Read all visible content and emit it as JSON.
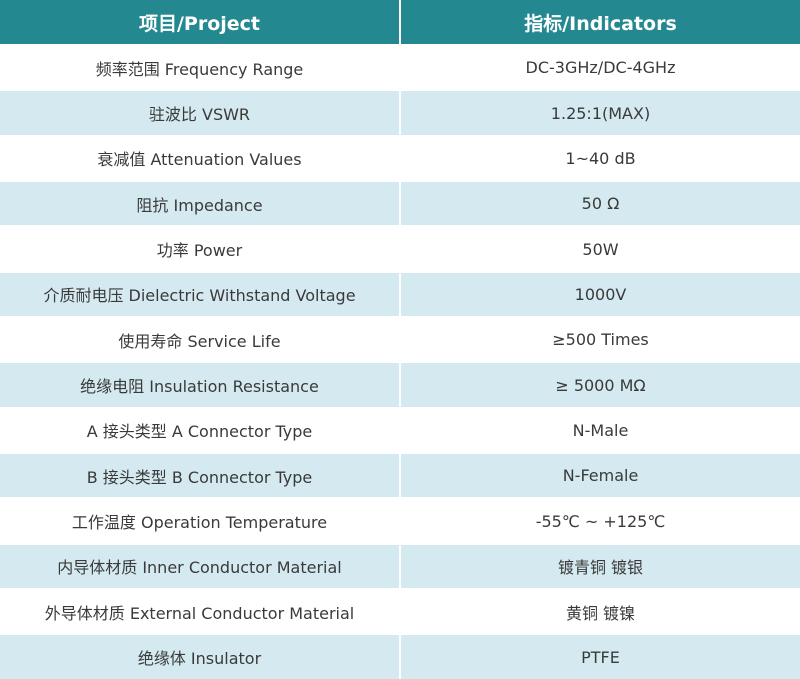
{
  "table": {
    "header": [
      "项目/Project",
      "指标/Indicators"
    ],
    "rows": [
      [
        "频率范围 Frequency Range",
        "DC-3GHz/DC-4GHz"
      ],
      [
        "驻波比 VSWR",
        "1.25:1(MAX)"
      ],
      [
        "衰减值 Attenuation Values",
        "1~40 dB"
      ],
      [
        "阻抗 Impedance",
        "50 Ω"
      ],
      [
        "功率 Power",
        "50W"
      ],
      [
        "介质耐电压 Dielectric Withstand Voltage",
        "1000V"
      ],
      [
        "使用寿命 Service Life",
        "≥500 Times"
      ],
      [
        "绝缘电阻 Insulation Resistance",
        "≥ 5000 MΩ"
      ],
      [
        "A 接头类型 A Connector Type",
        "N-Male"
      ],
      [
        "B 接头类型 B Connector Type",
        "N-Female"
      ],
      [
        "工作温度 Operation Temperature",
        "-55℃ ~ +125℃"
      ],
      [
        "内导体材质 Inner Conductor Material",
        "镀青铜 镀银"
      ],
      [
        "外导体材质 External Conductor Material",
        "黄铜 镀镍"
      ],
      [
        "绝缘体 Insulator",
        "PTFE"
      ]
    ]
  }
}
